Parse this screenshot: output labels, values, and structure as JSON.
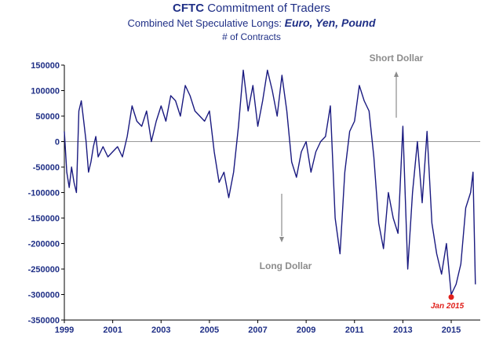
{
  "title": {
    "bold": "CFTC",
    "rest": " Commitment of Traders"
  },
  "subtitle": {
    "plain": "Combined Net Speculative Longs:  ",
    "emph": "Euro, Yen, Pound"
  },
  "units": "# of Contracts",
  "colors": {
    "line": "#1a1a80",
    "text": "#1f2f86",
    "zero": "#999999",
    "arrow": "#8c8c8c",
    "marker": "#e0201b"
  },
  "chart_data": {
    "type": "line",
    "title": "CFTC Commitment of Traders",
    "subtitle": "Combined Net Speculative Longs: Euro, Yen, Pound",
    "ylabel": "# of Contracts",
    "xlabel": "",
    "xlim": [
      1999,
      2016.2
    ],
    "ylim": [
      -350000,
      150000
    ],
    "y_ticks": [
      150000,
      100000,
      50000,
      0,
      -50000,
      -100000,
      -150000,
      -200000,
      -250000,
      -300000,
      -350000
    ],
    "y_tick_labels": [
      "150000",
      "100000",
      "50000",
      "0",
      "-50000",
      "-100000",
      "-150000",
      "-200000",
      "-250000",
      "-300000",
      "-350000"
    ],
    "x_ticks": [
      1999,
      2001,
      2003,
      2005,
      2007,
      2009,
      2011,
      2013,
      2015
    ],
    "x_tick_labels": [
      "1999",
      "2001",
      "2003",
      "2005",
      "2007",
      "2009",
      "2011",
      "2013",
      "2015"
    ],
    "grid": false,
    "legend": "none",
    "series": [
      {
        "x": [
          1999.0,
          1999.1,
          1999.2,
          1999.3,
          1999.4,
          1999.5,
          1999.6,
          1999.7,
          1999.8,
          1999.9,
          2000.0,
          2000.1,
          2000.2,
          2000.3,
          2000.4,
          2000.5,
          2000.6,
          2000.8,
          2001.0,
          2001.2,
          2001.4,
          2001.6,
          2001.8,
          2002.0,
          2002.2,
          2002.4,
          2002.6,
          2002.8,
          2003.0,
          2003.2,
          2003.4,
          2003.6,
          2003.8,
          2004.0,
          2004.2,
          2004.4,
          2004.6,
          2004.8,
          2005.0,
          2005.2,
          2005.4,
          2005.6,
          2005.8,
          2006.0,
          2006.2,
          2006.4,
          2006.6,
          2006.8,
          2007.0,
          2007.2,
          2007.4,
          2007.6,
          2007.8,
          2008.0,
          2008.2,
          2008.4,
          2008.6,
          2008.8,
          2009.0,
          2009.2,
          2009.4,
          2009.6,
          2009.8,
          2010.0,
          2010.2,
          2010.4,
          2010.6,
          2010.8,
          2011.0,
          2011.2,
          2011.4,
          2011.6,
          2011.8,
          2012.0,
          2012.2,
          2012.4,
          2012.6,
          2012.8,
          2013.0,
          2013.2,
          2013.4,
          2013.6,
          2013.8,
          2014.0,
          2014.2,
          2014.4,
          2014.6,
          2014.8,
          2015.0,
          2015.2,
          2015.4,
          2015.6,
          2015.8,
          2015.9,
          2016.0
        ],
        "y": [
          20000,
          -60000,
          -90000,
          -50000,
          -80000,
          -100000,
          60000,
          80000,
          40000,
          0,
          -60000,
          -40000,
          -10000,
          10000,
          -30000,
          -20000,
          -10000,
          -30000,
          -20000,
          -10000,
          -30000,
          10000,
          70000,
          40000,
          30000,
          60000,
          0,
          40000,
          70000,
          40000,
          90000,
          80000,
          50000,
          110000,
          90000,
          60000,
          50000,
          40000,
          60000,
          -20000,
          -80000,
          -60000,
          -110000,
          -60000,
          30000,
          140000,
          60000,
          110000,
          30000,
          80000,
          140000,
          100000,
          50000,
          130000,
          60000,
          -40000,
          -70000,
          -20000,
          0,
          -60000,
          -20000,
          0,
          10000,
          70000,
          -150000,
          -220000,
          -60000,
          20000,
          40000,
          110000,
          80000,
          60000,
          -30000,
          -160000,
          -210000,
          -100000,
          -150000,
          -180000,
          30000,
          -250000,
          -100000,
          0,
          -120000,
          20000,
          -160000,
          -220000,
          -260000,
          -200000,
          -300000,
          -280000,
          -240000,
          -130000,
          -100000,
          -60000,
          -280000
        ]
      }
    ],
    "annotations": [
      {
        "text": "Short Dollar",
        "direction": "up"
      },
      {
        "text": "Long Dollar",
        "direction": "down"
      },
      {
        "text": "Jan 2015",
        "x": 2015.0,
        "y": -305000
      }
    ]
  }
}
